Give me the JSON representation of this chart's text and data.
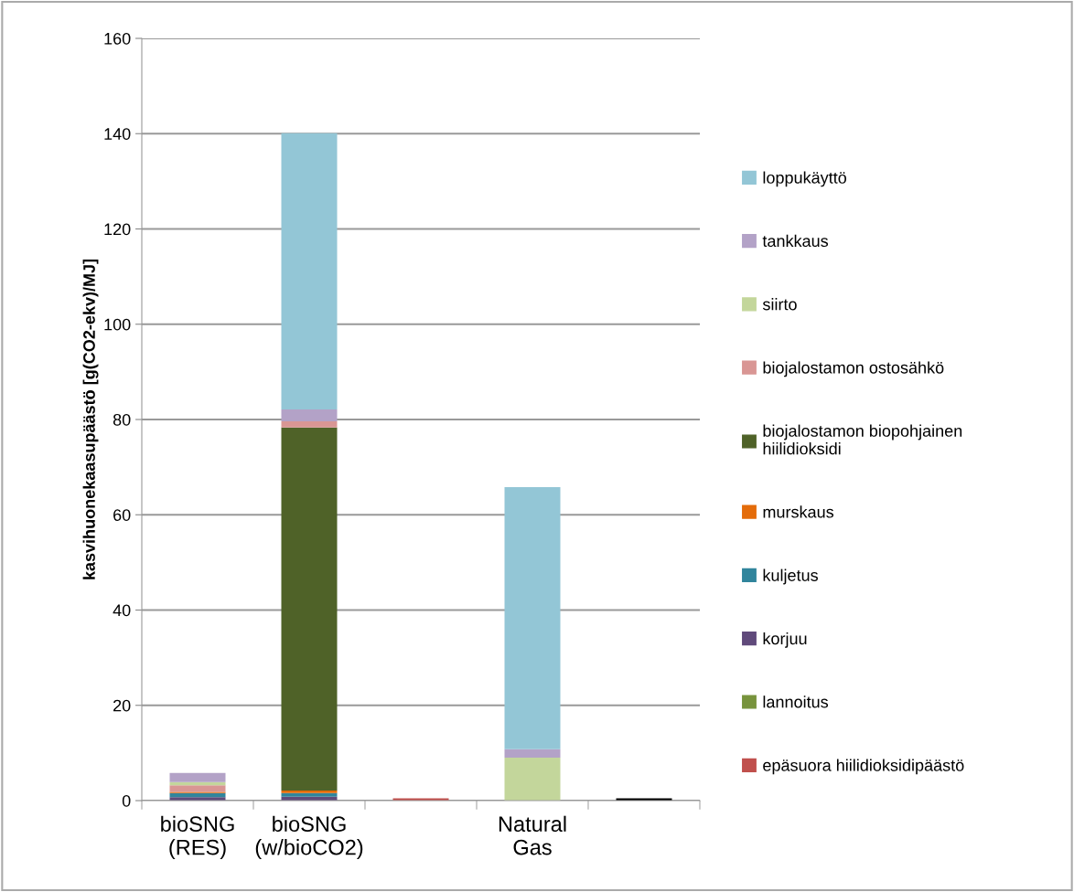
{
  "chart_data": {
    "type": "bar",
    "stacked": true,
    "ylabel": "kasvihuonekaasupäästö [g(CO2-ekv)/MJ]",
    "categories": [
      "bioSNG\n(RES)",
      "bioSNG\n(w/bioCO2)",
      null,
      "Natural\nGas",
      null
    ],
    "ylim": [
      0,
      160
    ],
    "yticks": [
      0,
      20,
      40,
      60,
      80,
      100,
      120,
      140,
      160
    ],
    "grid": "y",
    "legend": "right",
    "series": [
      {
        "name": "epäsuora hiilidioksidipäästö",
        "color": "#c0504d",
        "values": [
          null,
          null,
          0.5,
          null,
          null
        ]
      },
      {
        "name": "lannoitus",
        "color": "#77933c",
        "values": [
          null,
          null,
          null,
          null,
          null
        ]
      },
      {
        "name": "korjuu",
        "color": "#604a7b",
        "values": [
          0.7,
          0.8,
          null,
          null,
          null
        ]
      },
      {
        "name": "kuljetus",
        "color": "#31859c",
        "values": [
          0.9,
          0.8,
          null,
          null,
          null
        ]
      },
      {
        "name": "murskaus",
        "color": "#e46c0a",
        "values": [
          0.2,
          0.5,
          null,
          null,
          null
        ]
      },
      {
        "name": "biojalostamon biopohjainen\nhiilidioksidi",
        "color": "#4f6228",
        "values": [
          null,
          76.2,
          null,
          null,
          null
        ]
      },
      {
        "name": "biojalostamon ostosähkö",
        "color": "#d99694",
        "values": [
          1.4,
          1.3,
          null,
          null,
          null
        ]
      },
      {
        "name": "siirto",
        "color": "#c3d69b",
        "values": [
          0.7,
          null,
          null,
          9.0,
          null
        ]
      },
      {
        "name": "tankkaus",
        "color": "#b3a2c7",
        "values": [
          1.9,
          2.5,
          null,
          1.8,
          null
        ]
      },
      {
        "name": "loppukäyttö",
        "color": "#93c6d6",
        "values": [
          null,
          58,
          null,
          55,
          null
        ]
      },
      {
        "color": "#000000",
        "values": [
          null,
          null,
          null,
          null,
          0.5
        ]
      }
    ]
  }
}
